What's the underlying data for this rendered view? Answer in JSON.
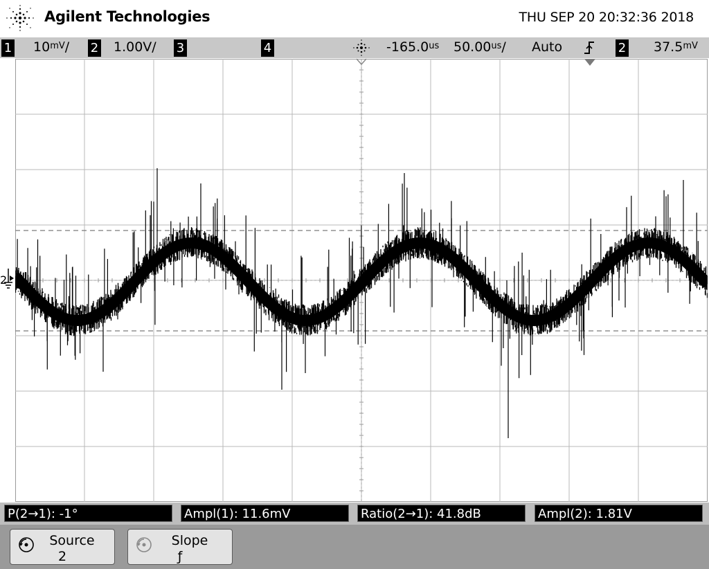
{
  "header": {
    "brand": "Agilent Technologies",
    "datetime": "THU SEP 20 20:32:36 2018"
  },
  "status": {
    "ch1_num": "1",
    "ch1_scale": "10",
    "ch1_unit": "mV",
    "ch1_suffix": "/",
    "ch2_num": "2",
    "ch2_scale": "1.00V/",
    "ch3_num": "3",
    "ch4_num": "4",
    "delay_value": "-165.0",
    "delay_unit": "us",
    "timebase_value": "50.00",
    "timebase_unit": "us",
    "timebase_suffix": "/",
    "trigger_mode": "Auto",
    "trigger_slope_icon": "rising-edge-icon",
    "trigger_source": "2",
    "trigger_level_value": "37.5",
    "trigger_level_unit": "mV"
  },
  "screen": {
    "ch2_marker": "2",
    "colors": {
      "trace": "#000000",
      "grid": "#b9b9b9",
      "cursor": "#7a7a7a"
    }
  },
  "measurements": [
    {
      "label": "P(2→1): -1°"
    },
    {
      "label": "Ampl(1): 11.6mV"
    },
    {
      "label": "Ratio(2→1): 41.8dB"
    },
    {
      "label": "Ampl(2): 1.81V"
    }
  ],
  "softkeys": [
    {
      "label": "Source",
      "value": "2",
      "icon": "rotary-knob-icon"
    },
    {
      "label": "Slope",
      "value": "ƒ",
      "icon": "rotary-knob-icon"
    }
  ]
}
